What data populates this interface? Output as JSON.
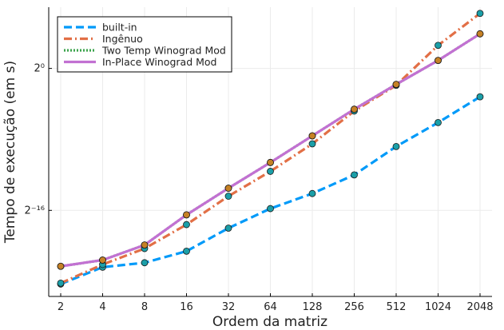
{
  "chart_data": {
    "type": "line",
    "title": "",
    "xlabel": "Ordem da matriz",
    "ylabel": "Tempo de execução (em s)",
    "x_scale": "log2",
    "y_scale": "log2",
    "x": [
      2,
      4,
      8,
      16,
      32,
      64,
      128,
      256,
      512,
      1024,
      2048
    ],
    "x_tick_labels": [
      "2",
      "4",
      "8",
      "16",
      "32",
      "64",
      "128",
      "256",
      "512",
      "1024",
      "2048"
    ],
    "y_ticks": [
      {
        "exponent": 0,
        "label": "2⁰"
      },
      {
        "exponent": -16,
        "label": "2⁻¹⁶"
      }
    ],
    "ylim_log2": [
      -25.7,
      6.9
    ],
    "grid": true,
    "legend_position": "top-left",
    "series": [
      {
        "name": "built-in",
        "color": "#009af9",
        "dash": "long-dash",
        "marker_color": "#1b9fa8",
        "values_log2": [
          -24.3,
          -22.4,
          -21.9,
          -20.6,
          -18.0,
          -15.8,
          -14.1,
          -12.0,
          -8.8,
          -6.1,
          -3.2
        ]
      },
      {
        "name": "Ingênuo",
        "color": "#e26f46",
        "dash": "dash-dot",
        "marker_color": "#1b9fa8",
        "values_log2": [
          -24.2,
          -22.1,
          -20.3,
          -17.6,
          -14.4,
          -11.6,
          -8.5,
          -4.8,
          -1.9,
          2.6,
          6.2
        ]
      },
      {
        "name": "Two Temp Winograd Mod",
        "color": "#3da44d",
        "dash": "dotted",
        "marker_color": "#c68125",
        "values_log2": [
          -22.3,
          -21.6,
          -19.9,
          -16.5,
          -13.5,
          -10.6,
          -7.6,
          -4.6,
          -1.8,
          0.9,
          3.9
        ]
      },
      {
        "name": "In-Place Winograd Mod",
        "color": "#c271d2",
        "dash": "solid",
        "marker_color": "#c68125",
        "values_log2": [
          -22.3,
          -21.6,
          -19.9,
          -16.5,
          -13.5,
          -10.6,
          -7.6,
          -4.6,
          -1.8,
          0.9,
          3.9
        ]
      }
    ]
  }
}
